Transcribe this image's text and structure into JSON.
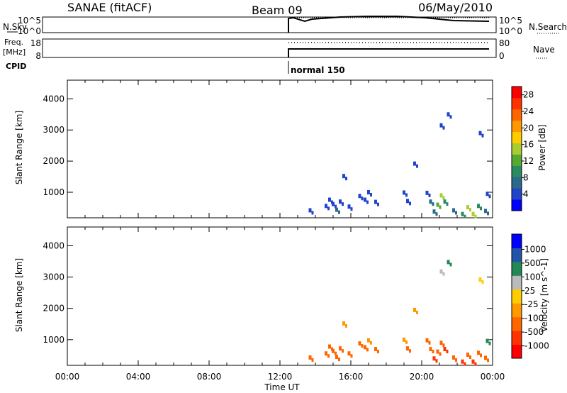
{
  "header": {
    "station": "SANAE (fitACF)",
    "beam": "Beam 09",
    "date": "06/May/2010"
  },
  "summary": {
    "nsky_label": "N.Sky",
    "nsearch_label": "N.Search",
    "nsky_ticks": [
      "10^5",
      "10^0"
    ],
    "nsearch_ticks": [
      "10^5",
      "10^0"
    ],
    "freq_label_1": "Freq.",
    "freq_label_2": "[MHz]",
    "freq_ticks": [
      "18",
      "8"
    ],
    "nave_label": "Nave",
    "nave_ticks": [
      "80",
      "0"
    ],
    "cpid_label": "CPID",
    "cpid_text": "normal 150"
  },
  "colors": {
    "power_scale": [
      "#0000ff",
      "#2244cc",
      "#2a6a8a",
      "#2c8a62",
      "#55aa33",
      "#aacc33",
      "#ffcc00",
      "#ff9900",
      "#ff6600",
      "#ff3300",
      "#ff0000"
    ],
    "velocity_scale": [
      "#ff0000",
      "#ff3300",
      "#ff6600",
      "#ff9900",
      "#ffcc00",
      "#bbbbbb",
      "#228855",
      "#2255aa",
      "#0000ff"
    ]
  },
  "chart_data": [
    {
      "type": "line",
      "panel": "n-sky",
      "x_unit": "hours UT",
      "xlim": [
        0,
        24
      ],
      "yscale": "log",
      "ticks": [
        "10^5",
        "10^0"
      ],
      "start_hour": 12.6,
      "trace_level": "near 10^5 after 12:36 UT, slowly declining after 20:00",
      "nsearch_style": "dotted"
    },
    {
      "type": "line",
      "panel": "frequency-nave",
      "x_unit": "hours UT",
      "xlim": [
        0,
        24
      ],
      "freq_ylim": [
        8,
        18
      ],
      "freq_value_MHz": 12.2,
      "nave_ylim": [
        0,
        80
      ],
      "nave_value": 70,
      "start_hour": 12.6,
      "nave_style": "dotted"
    },
    {
      "type": "scatter",
      "panel": "power",
      "x_unit": "hours UT",
      "xlim": [
        0,
        24
      ],
      "xticks": [
        "00:00",
        "04:00",
        "08:00",
        "12:00",
        "16:00",
        "20:00",
        "00:00"
      ],
      "ylabel": "Slant Range [km]",
      "ylim": [
        180,
        4600
      ],
      "yticks": [
        1000,
        2000,
        3000,
        4000
      ],
      "colorbar_label": "Power [dB]",
      "colorbar_ticks": [
        4,
        8,
        12,
        16,
        20,
        24,
        28
      ],
      "points": [
        [
          13.7,
          420,
          4
        ],
        [
          14.6,
          560,
          5
        ],
        [
          14.8,
          760,
          5
        ],
        [
          15.0,
          620,
          4
        ],
        [
          15.2,
          440,
          6
        ],
        [
          15.4,
          700,
          5
        ],
        [
          15.6,
          1520,
          4
        ],
        [
          15.9,
          540,
          5
        ],
        [
          16.5,
          880,
          5
        ],
        [
          16.8,
          760,
          5
        ],
        [
          17.0,
          1000,
          4
        ],
        [
          17.4,
          690,
          4
        ],
        [
          19.0,
          990,
          4
        ],
        [
          19.2,
          720,
          5
        ],
        [
          19.6,
          1920,
          4
        ],
        [
          20.3,
          980,
          5
        ],
        [
          20.5,
          700,
          6
        ],
        [
          20.7,
          380,
          8
        ],
        [
          20.9,
          600,
          12
        ],
        [
          21.1,
          900,
          14
        ],
        [
          21.1,
          3150,
          4
        ],
        [
          21.3,
          700,
          10
        ],
        [
          21.5,
          3500,
          4
        ],
        [
          21.8,
          420,
          6
        ],
        [
          22.3,
          300,
          10
        ],
        [
          22.6,
          520,
          14
        ],
        [
          22.9,
          300,
          16
        ],
        [
          23.2,
          560,
          10
        ],
        [
          23.3,
          2900,
          4
        ],
        [
          23.6,
          400,
          8
        ],
        [
          23.7,
          950,
          4
        ]
      ]
    },
    {
      "type": "scatter",
      "panel": "velocity",
      "x_unit": "hours UT",
      "xlim": [
        0,
        24
      ],
      "xticks": [
        "00:00",
        "04:00",
        "08:00",
        "12:00",
        "16:00",
        "20:00",
        "00:00"
      ],
      "xlabel": "Time UT",
      "ylabel": "Slant Range [km]",
      "ylim": [
        180,
        4600
      ],
      "yticks": [
        1000,
        2000,
        3000,
        4000
      ],
      "colorbar_label": "Velocity [m s^-1]",
      "colorbar_ticks": [
        1000,
        500,
        100,
        25,
        -25,
        -100,
        -500,
        -1000
      ],
      "points": [
        [
          13.7,
          430,
          -300
        ],
        [
          14.6,
          560,
          -200
        ],
        [
          14.8,
          780,
          -150
        ],
        [
          15.0,
          640,
          -150
        ],
        [
          15.2,
          450,
          -250
        ],
        [
          15.4,
          720,
          -120
        ],
        [
          15.6,
          1520,
          -80
        ],
        [
          15.9,
          560,
          -150
        ],
        [
          16.5,
          880,
          -300
        ],
        [
          16.8,
          760,
          -200
        ],
        [
          17.0,
          980,
          -80
        ],
        [
          17.4,
          700,
          -100
        ],
        [
          19.0,
          1000,
          -60
        ],
        [
          19.2,
          720,
          -180
        ],
        [
          19.6,
          1950,
          -90
        ],
        [
          20.3,
          980,
          -300
        ],
        [
          20.5,
          700,
          -400
        ],
        [
          20.7,
          400,
          -600
        ],
        [
          20.9,
          620,
          -300
        ],
        [
          21.1,
          900,
          -250
        ],
        [
          21.1,
          3180,
          50
        ],
        [
          21.3,
          700,
          -500
        ],
        [
          21.5,
          3480,
          150
        ],
        [
          21.8,
          430,
          -350
        ],
        [
          22.3,
          300,
          -700
        ],
        [
          22.6,
          520,
          -450
        ],
        [
          22.9,
          300,
          -800
        ],
        [
          23.2,
          580,
          -300
        ],
        [
          23.3,
          2920,
          20
        ],
        [
          23.6,
          420,
          -250
        ],
        [
          23.7,
          960,
          120
        ]
      ]
    }
  ]
}
